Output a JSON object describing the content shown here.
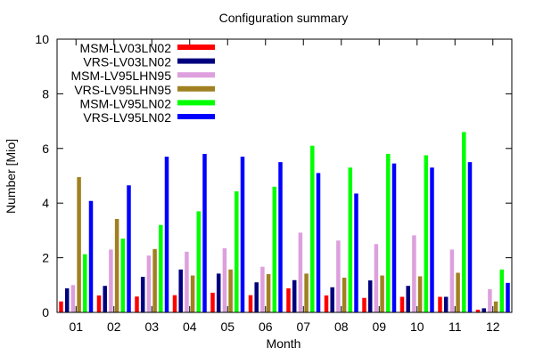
{
  "chart_data": {
    "type": "bar",
    "title": "Configuration summary",
    "xlabel": "Month",
    "ylabel": "Number [Mio]",
    "ylim": [
      0,
      10
    ],
    "yticks": [
      "0",
      "2",
      "4",
      "6",
      "8",
      "10"
    ],
    "grid": false,
    "legend_position": "top-left",
    "categories": [
      "01",
      "02",
      "03",
      "04",
      "05",
      "06",
      "07",
      "08",
      "09",
      "10",
      "11",
      "12"
    ],
    "series": [
      {
        "name": "MSM-LV03LN02",
        "color": "#ff0000",
        "values": [
          0.4,
          0.62,
          0.58,
          0.63,
          0.72,
          0.63,
          0.88,
          0.62,
          0.53,
          0.57,
          0.57,
          0.1
        ]
      },
      {
        "name": "VRS-LV03LN02",
        "color": "#00007f",
        "values": [
          0.88,
          0.97,
          1.3,
          1.57,
          1.42,
          1.1,
          1.18,
          0.92,
          1.17,
          0.97,
          0.57,
          0.15
        ]
      },
      {
        "name": "MSM-LV95LHN95",
        "color": "#dda0dd",
        "values": [
          1.0,
          2.3,
          2.08,
          2.22,
          2.35,
          1.67,
          2.92,
          2.63,
          2.5,
          2.82,
          2.3,
          0.85
        ]
      },
      {
        "name": "VRS-LV95LHN95",
        "color": "#a08020",
        "values": [
          4.95,
          3.42,
          2.32,
          1.35,
          1.57,
          1.4,
          1.42,
          1.27,
          1.35,
          1.32,
          1.45,
          0.4
        ]
      },
      {
        "name": "MSM-LV95LN02",
        "color": "#00ff00",
        "values": [
          2.13,
          2.7,
          3.2,
          3.7,
          4.43,
          4.6,
          6.1,
          5.3,
          5.8,
          5.75,
          6.6,
          1.57
        ]
      },
      {
        "name": "VRS-LV95LN02",
        "color": "#0000ff",
        "values": [
          4.08,
          4.65,
          5.7,
          5.8,
          5.7,
          5.5,
          5.1,
          4.35,
          5.45,
          5.3,
          5.5,
          1.08
        ]
      }
    ]
  }
}
